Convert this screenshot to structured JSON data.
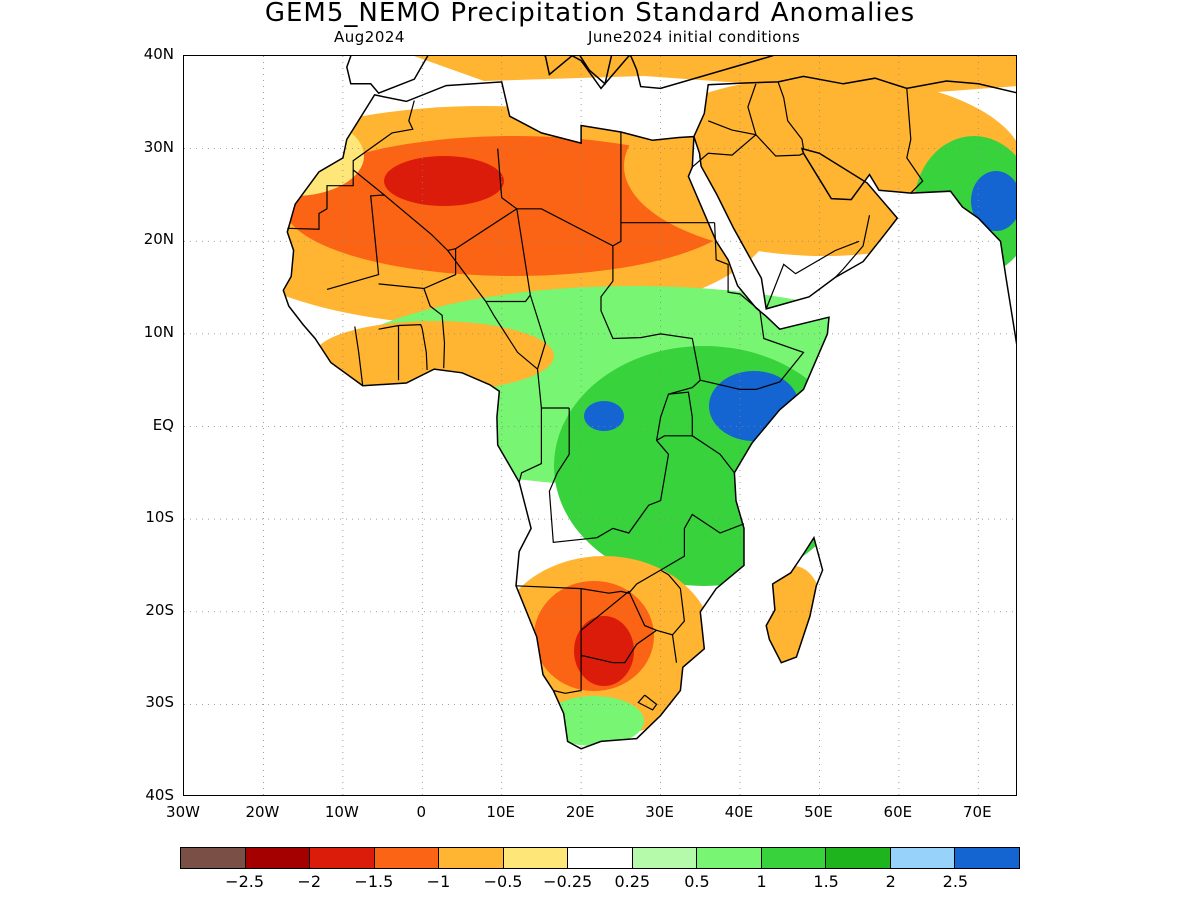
{
  "title": "GEM5_NEMO Precipitation Standard Anomalies",
  "subtitle_left": "Aug2024",
  "subtitle_right": "June2024 initial conditions",
  "map": {
    "lat_labels": [
      {
        "lat": 40,
        "text": "40N"
      },
      {
        "lat": 30,
        "text": "30N"
      },
      {
        "lat": 20,
        "text": "20N"
      },
      {
        "lat": 10,
        "text": "10N"
      },
      {
        "lat": 0,
        "text": "EQ"
      },
      {
        "lat": -10,
        "text": "10S"
      },
      {
        "lat": -20,
        "text": "20S"
      },
      {
        "lat": -30,
        "text": "30S"
      },
      {
        "lat": -40,
        "text": "40S"
      }
    ],
    "lon_labels": [
      {
        "lon": -30,
        "text": "30W"
      },
      {
        "lon": -20,
        "text": "20W"
      },
      {
        "lon": -10,
        "text": "10W"
      },
      {
        "lon": 0,
        "text": "0"
      },
      {
        "lon": 10,
        "text": "10E"
      },
      {
        "lon": 20,
        "text": "20E"
      },
      {
        "lon": 30,
        "text": "30E"
      },
      {
        "lon": 40,
        "text": "40E"
      },
      {
        "lon": 50,
        "text": "50E"
      },
      {
        "lon": 60,
        "text": "60E"
      },
      {
        "lon": 70,
        "text": "70E"
      }
    ],
    "lon_range": [
      -30,
      75
    ],
    "lat_range": [
      -40,
      40
    ],
    "grid": true
  },
  "legend": {
    "colors": [
      "#7a4f46",
      "#a50000",
      "#dc1c0a",
      "#fa6414",
      "#ffb432",
      "#ffe678",
      "#ffffff",
      "#b4faaa",
      "#78f573",
      "#37d23c",
      "#1eb41e",
      "#96d2fa",
      "#1464d2"
    ],
    "labels": [
      "−2.5",
      "−2",
      "−1.5",
      "−1",
      "−0.5",
      "−0.25",
      "0.25",
      "0.5",
      "1",
      "1.5",
      "2",
      "2.5"
    ]
  }
}
